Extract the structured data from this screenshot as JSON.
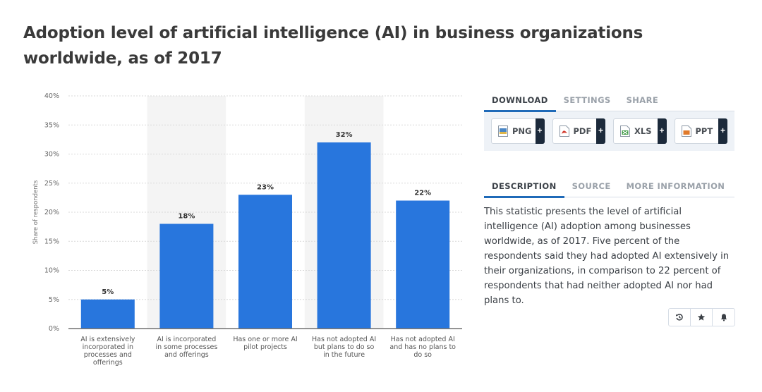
{
  "title": "Adoption level of artificial intelligence (AI) in business organizations worldwide, as of 2017",
  "tabs_top": [
    "DOWNLOAD",
    "SETTINGS",
    "SHARE"
  ],
  "downloads": [
    {
      "label": "PNG",
      "icon": "png-file-icon",
      "color": "#4a86c5"
    },
    {
      "label": "PDF",
      "icon": "pdf-file-icon",
      "color": "#d23a2e"
    },
    {
      "label": "XLS",
      "icon": "xls-file-icon",
      "color": "#3f9a45"
    },
    {
      "label": "PPT",
      "icon": "ppt-file-icon",
      "color": "#e07a2b"
    }
  ],
  "plus_label": "+",
  "tabs_bottom": [
    "DESCRIPTION",
    "SOURCE",
    "MORE INFORMATION"
  ],
  "description": "This statistic presents the level of artificial intelligence (AI) adoption among businesses worldwide, as of 2017. Five percent of the respondents said they had adopted AI extensively in their organizations, in comparison to 22 percent of respondents that had neither adopted AI nor had plans to.",
  "actions": [
    "history-icon",
    "star-icon",
    "bell-icon"
  ],
  "chart_data": {
    "type": "bar",
    "categories": [
      "AI is extensively incorporated in processes and offerings",
      "AI is incorporated in some processes and offerings",
      "Has one or more AI pilot projects",
      "Has not adopted AI but plans to do so in the future",
      "Has not adopted AI and has no plans to do so"
    ],
    "category_lines": [
      [
        "AI is extensively",
        "incorporated in",
        "processes and",
        "offerings"
      ],
      [
        "AI is incorporated",
        "in some processes",
        "and offerings"
      ],
      [
        "Has one or more AI",
        "pilot projects"
      ],
      [
        "Has not adopted AI",
        "but plans to do so",
        "in the future"
      ],
      [
        "Has not adopted AI",
        "and has no plans to",
        "do so"
      ]
    ],
    "values": [
      5,
      18,
      23,
      32,
      22
    ],
    "value_labels": [
      "5%",
      "18%",
      "23%",
      "32%",
      "22%"
    ],
    "ylabel": "Share of respondents",
    "ylim": [
      0,
      40
    ],
    "yticks": [
      0,
      5,
      10,
      15,
      20,
      25,
      30,
      35,
      40
    ],
    "ytick_labels": [
      "0%",
      "5%",
      "10%",
      "15%",
      "20%",
      "25%",
      "30%",
      "35%",
      "40%"
    ],
    "bar_color": "#2876dd",
    "band_color": "#f4f4f4",
    "grid": true
  }
}
